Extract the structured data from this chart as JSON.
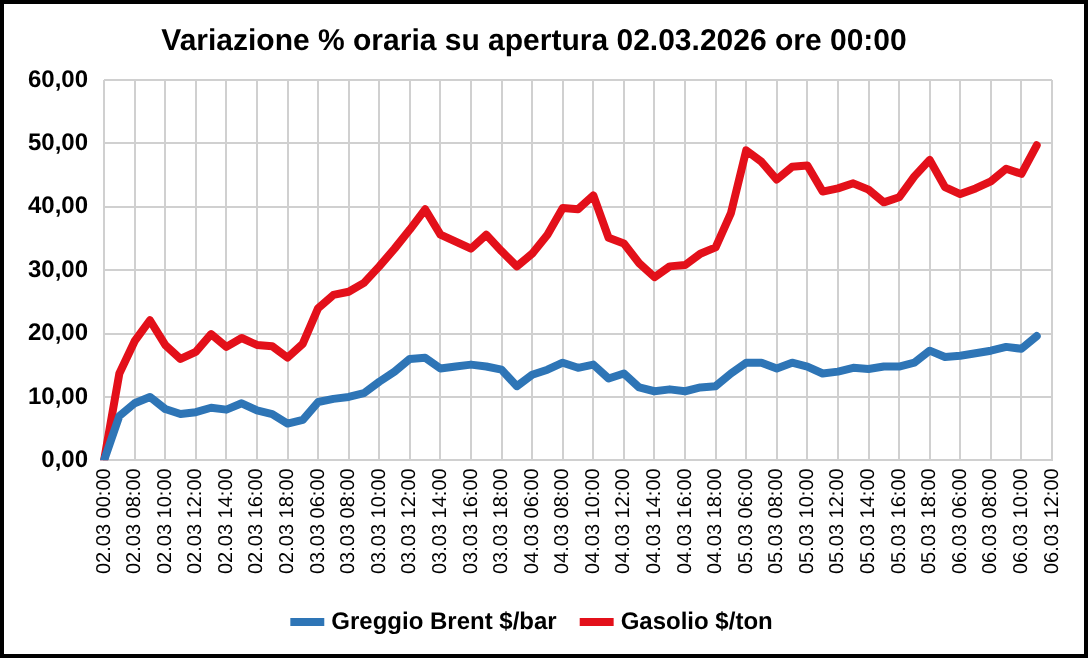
{
  "chart_data": {
    "type": "line",
    "title": "Variazione % oraria su apertura 02.03.2026 ore 00:00",
    "categories": [
      "02.03 00:00",
      null,
      "02.03 08:00",
      null,
      "02.03 10:00",
      null,
      "02.03 12:00",
      null,
      "02.03 14:00",
      null,
      "02.03 16:00",
      null,
      "02.03 18:00",
      null,
      "03.03 06:00",
      null,
      "03.03 08:00",
      null,
      "03.03 10:00",
      null,
      "03.03 12:00",
      null,
      "03.03 14:00",
      null,
      "03.03 16:00",
      null,
      "03.03 18:00",
      null,
      "04.03 06:00",
      null,
      "04.03 08:00",
      null,
      "04.03 10:00",
      null,
      "04.03 12:00",
      null,
      "04.03 14:00",
      null,
      "04.03 16:00",
      null,
      "04.03 18:00",
      null,
      "05.03 06:00",
      null,
      "05.03 08:00",
      null,
      "05.03 10:00",
      null,
      "05.03 12:00",
      null,
      "05.03 14:00",
      null,
      "05.03 16:00",
      null,
      "05.03 18:00",
      null,
      "06.03 06:00",
      null,
      "06.03 08:00",
      null,
      "06.03 10:00",
      null,
      "06.03 12:00"
    ],
    "series": [
      {
        "name": "Greggio Brent $/bar",
        "color": "#2e75b6",
        "values": [
          0,
          7.0,
          9.0,
          10.0,
          8.1,
          7.3,
          7.6,
          8.3,
          8.0,
          9.0,
          7.9,
          7.3,
          5.8,
          6.4,
          9.2,
          9.7,
          10.0,
          10.6,
          12.4,
          14.0,
          16.0,
          16.2,
          14.5,
          14.8,
          15.1,
          14.8,
          14.3,
          11.7,
          13.5,
          14.3,
          15.4,
          14.6,
          15.1,
          12.9,
          13.7,
          11.5,
          10.9,
          11.2,
          10.9,
          11.5,
          11.7,
          13.7,
          15.4,
          15.4,
          14.5,
          15.4,
          14.8,
          13.7,
          14.0,
          14.6,
          14.4,
          14.8,
          14.8,
          15.4,
          17.3,
          16.3,
          16.5,
          16.9,
          17.3,
          17.9,
          17.6,
          19.6,
          null
        ]
      },
      {
        "name": "Gasolio $/ton",
        "color": "#e3101a",
        "values": [
          0,
          13.7,
          18.8,
          22.1,
          18.2,
          16.0,
          17.1,
          19.9,
          17.9,
          19.3,
          18.2,
          18.0,
          16.2,
          18.4,
          24.0,
          26.1,
          26.6,
          28.0,
          30.6,
          33.4,
          36.4,
          39.6,
          35.6,
          34.5,
          33.4,
          35.6,
          33.0,
          30.6,
          32.6,
          35.6,
          39.8,
          39.6,
          41.8,
          35.1,
          34.2,
          31.1,
          28.9,
          30.6,
          30.8,
          32.6,
          33.6,
          39.0,
          48.9,
          47.1,
          44.3,
          46.3,
          46.5,
          42.4,
          42.9,
          43.7,
          42.7,
          40.7,
          41.5,
          44.8,
          47.4,
          43.1,
          42.0,
          42.9,
          44.0,
          46.0,
          45.2,
          49.7,
          null
        ]
      }
    ],
    "ylim": [
      0,
      60
    ],
    "yticks": [
      {
        "value": 0,
        "label": "0,00"
      },
      {
        "value": 10,
        "label": "10,00"
      },
      {
        "value": 20,
        "label": "20,00"
      },
      {
        "value": 30,
        "label": "30,00"
      },
      {
        "value": 40,
        "label": "40,00"
      },
      {
        "value": 50,
        "label": "50,00"
      },
      {
        "value": 60,
        "label": "60,00"
      }
    ],
    "grid": true,
    "legend": "bottom",
    "marker": "none",
    "line_style": "solid"
  }
}
